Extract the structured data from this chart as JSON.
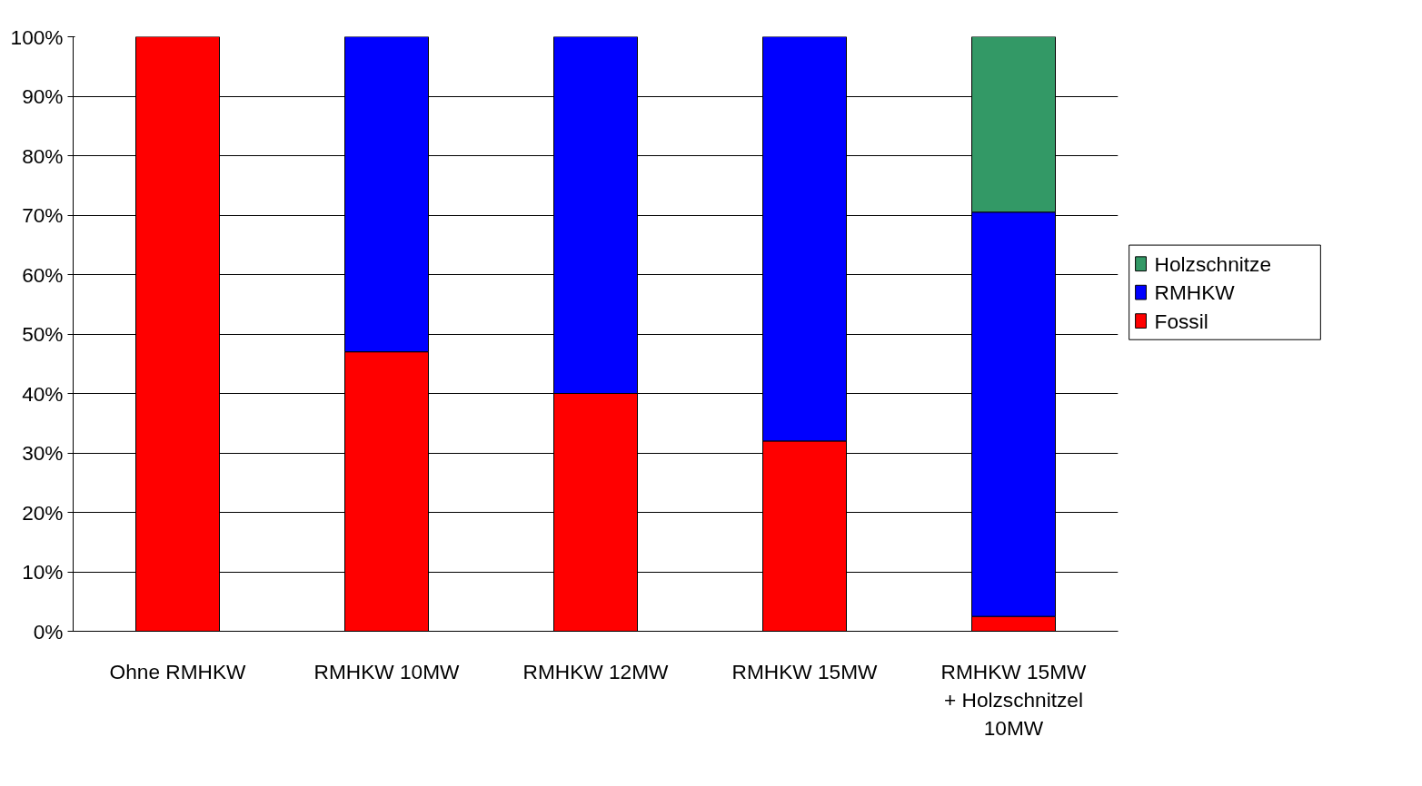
{
  "chart_data": {
    "type": "bar",
    "stacked": true,
    "categories": [
      "Ohne RMHKW",
      "RMHKW 10MW",
      "RMHKW 12MW",
      "RMHKW 15MW",
      "RMHKW 15MW\n+ Holzschnitzel\n10MW"
    ],
    "series": [
      {
        "name": "Fossil",
        "color": "#ff0000",
        "values": [
          100,
          47,
          40,
          32,
          2.5
        ]
      },
      {
        "name": "RMHKW",
        "color": "#0000ff",
        "values": [
          null,
          53,
          60,
          68,
          68
        ]
      },
      {
        "name": "Holzschnitze",
        "color": "#339966",
        "values": [
          null,
          null,
          null,
          null,
          29.5
        ]
      }
    ],
    "ylim": [
      0,
      100
    ],
    "yticks": [
      {
        "value": 0,
        "label": "0%"
      },
      {
        "value": 10,
        "label": "10%"
      },
      {
        "value": 20,
        "label": "20%"
      },
      {
        "value": 30,
        "label": "30%"
      },
      {
        "value": 40,
        "label": "40%"
      },
      {
        "value": 50,
        "label": "50%"
      },
      {
        "value": 60,
        "label": "60%"
      },
      {
        "value": 70,
        "label": "70%"
      },
      {
        "value": 80,
        "label": "80%"
      },
      {
        "value": 90,
        "label": "90%"
      },
      {
        "value": 100,
        "label": "100%"
      }
    ],
    "grid": "y",
    "legend": "right"
  }
}
